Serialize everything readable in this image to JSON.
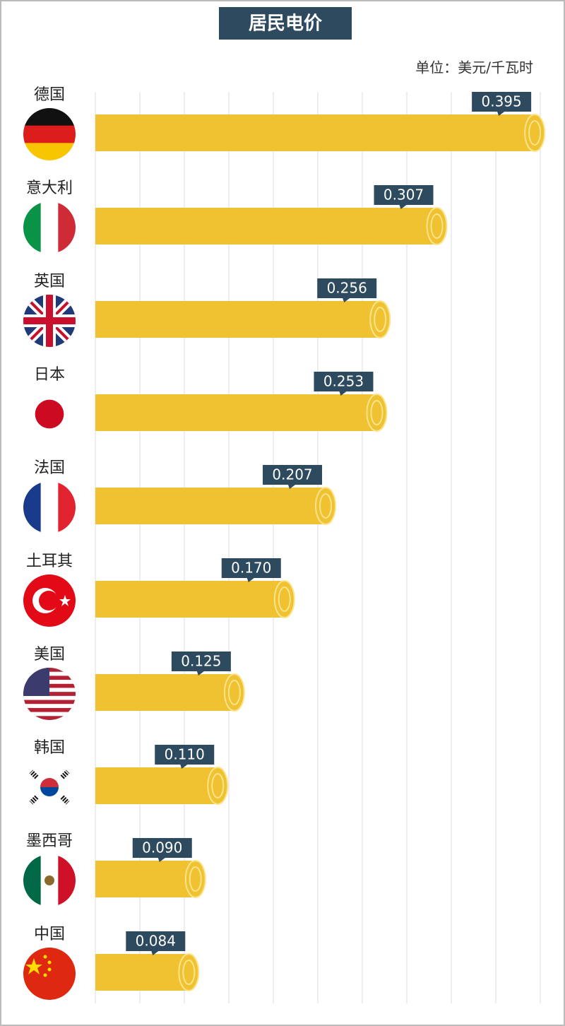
{
  "chart_data": {
    "type": "bar",
    "orientation": "horizontal",
    "title": "居民电价",
    "unit": "单位：美元/千瓦时",
    "categories": [
      "德国",
      "意大利",
      "英国",
      "日本",
      "法国",
      "土耳其",
      "美国",
      "韩国",
      "墨西哥",
      "中国"
    ],
    "values": [
      0.395,
      0.307,
      0.256,
      0.253,
      0.207,
      0.17,
      0.125,
      0.11,
      0.09,
      0.084
    ],
    "value_labels": [
      "0.395",
      "0.307",
      "0.256",
      "0.253",
      "0.207",
      "0.170",
      "0.125",
      "0.110",
      "0.090",
      "0.084"
    ],
    "color": "#f0c232",
    "xlim": [
      0,
      0.4
    ],
    "grid": true
  }
}
